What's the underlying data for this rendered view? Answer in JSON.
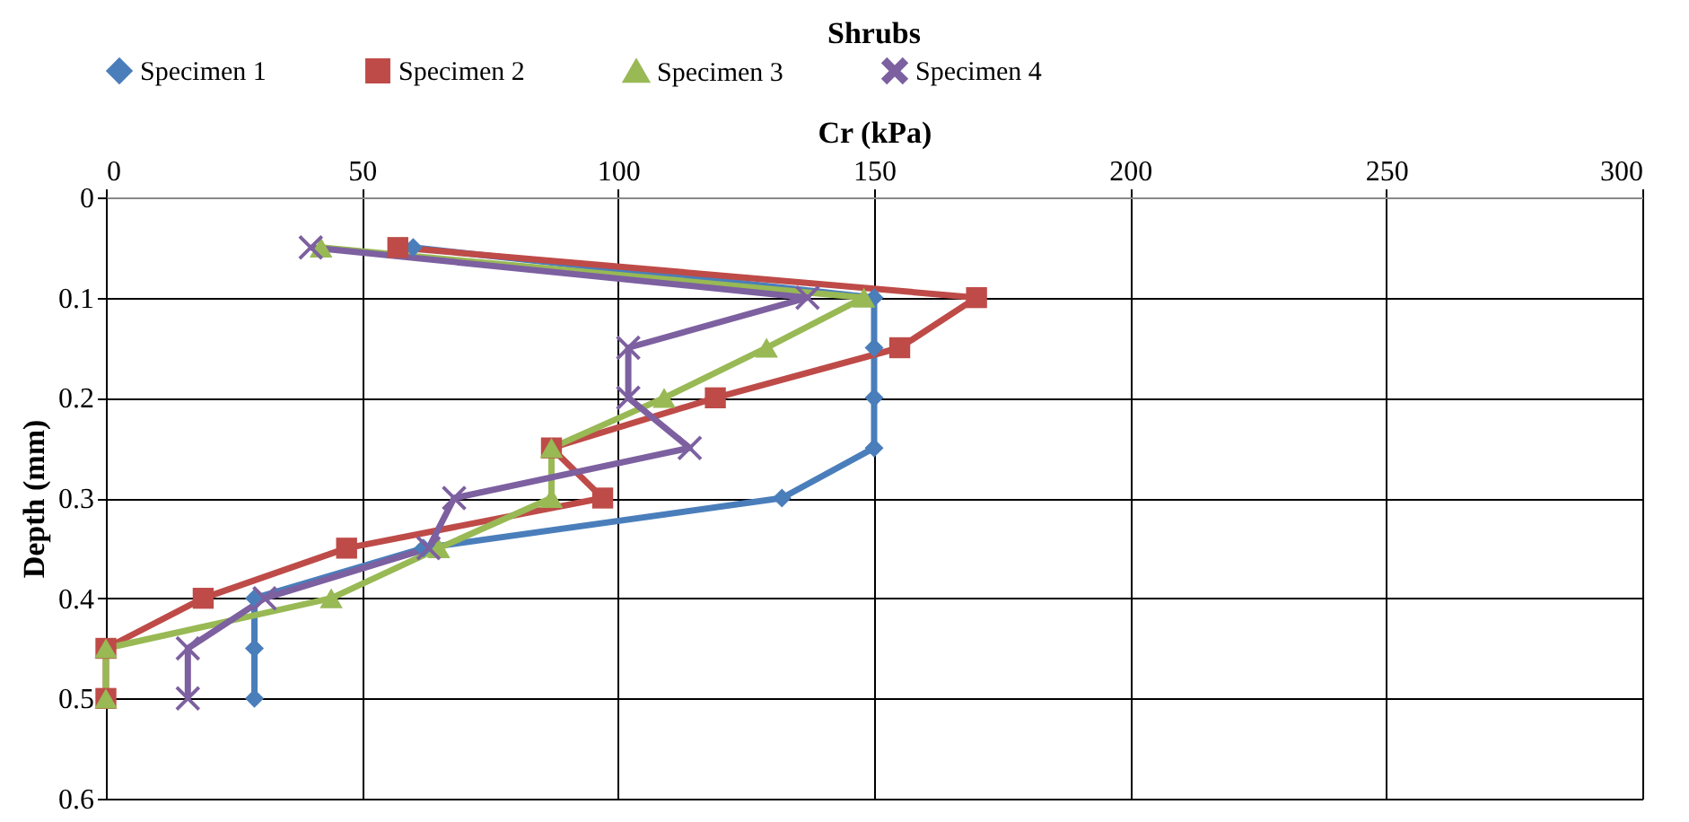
{
  "chart_data": {
    "type": "line",
    "title": "Shrubs",
    "xlabel": "Cr (kPa)",
    "ylabel": "Depth (mm)",
    "xlim": [
      0,
      300
    ],
    "xticks": [
      0,
      50,
      100,
      150,
      200,
      250,
      300
    ],
    "ylim": [
      0.6,
      0
    ],
    "yticks": [
      0,
      0.1,
      0.2,
      0.3,
      0.4,
      0.5,
      0.6
    ],
    "grid": true,
    "legend": "top",
    "line_style": "solid",
    "series": [
      {
        "name": "Specimen 1",
        "color": "#4a7ebb",
        "marker": "diamond",
        "x": [
          60,
          150,
          150,
          150,
          150,
          132,
          62,
          29,
          29,
          29
        ],
        "values": [
          0.05,
          0.1,
          0.15,
          0.2,
          0.25,
          0.3,
          0.35,
          0.4,
          0.45,
          0.5
        ]
      },
      {
        "name": "Specimen 2",
        "color": "#be4b48",
        "marker": "square",
        "x": [
          57,
          170,
          155,
          119,
          87,
          97,
          47,
          19,
          0,
          0
        ],
        "values": [
          0.05,
          0.1,
          0.15,
          0.2,
          0.25,
          0.3,
          0.35,
          0.4,
          0.45,
          0.5
        ]
      },
      {
        "name": "Specimen 3",
        "color": "#98b954",
        "marker": "triangle",
        "x": [
          42,
          148,
          129,
          109,
          87,
          87,
          65,
          44,
          0,
          0
        ],
        "values": [
          0.05,
          0.1,
          0.15,
          0.2,
          0.25,
          0.3,
          0.35,
          0.4,
          0.45,
          0.5
        ]
      },
      {
        "name": "Specimen 4",
        "color": "#7d60a0",
        "marker": "cross",
        "x": [
          40,
          137,
          102,
          102,
          114,
          68,
          63,
          31,
          16,
          16
        ],
        "values": [
          0.05,
          0.1,
          0.15,
          0.2,
          0.25,
          0.3,
          0.35,
          0.4,
          0.45,
          0.5
        ]
      }
    ]
  }
}
